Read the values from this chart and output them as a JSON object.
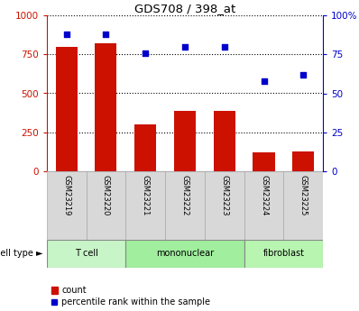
{
  "title": "GDS708 / 398_at",
  "samples": [
    "GSM23219",
    "GSM23220",
    "GSM23221",
    "GSM23222",
    "GSM23223",
    "GSM23224",
    "GSM23225"
  ],
  "counts": [
    800,
    820,
    300,
    385,
    385,
    120,
    125
  ],
  "percentiles": [
    88,
    88,
    76,
    80,
    80,
    58,
    62
  ],
  "cell_types": [
    {
      "label": "T cell",
      "start": 0,
      "end": 2,
      "color": "#c8f5c8"
    },
    {
      "label": "mononuclear",
      "start": 2,
      "end": 5,
      "color": "#a0ee9e"
    },
    {
      "label": "fibroblast",
      "start": 5,
      "end": 7,
      "color": "#b8f5b0"
    }
  ],
  "bar_color": "#cc1100",
  "dot_color": "#0000cc",
  "left_axis_color": "#cc1100",
  "right_axis_color": "#0000cc",
  "ylim_left": [
    0,
    1000
  ],
  "ylim_right": [
    0,
    100
  ],
  "yticks_left": [
    0,
    250,
    500,
    750,
    1000
  ],
  "yticks_right": [
    0,
    25,
    50,
    75,
    100
  ],
  "grid_color": "black",
  "sample_box_color": "#d8d8d8",
  "cell_type_label": "cell type",
  "legend_count": "count",
  "legend_percentile": "percentile rank within the sample"
}
